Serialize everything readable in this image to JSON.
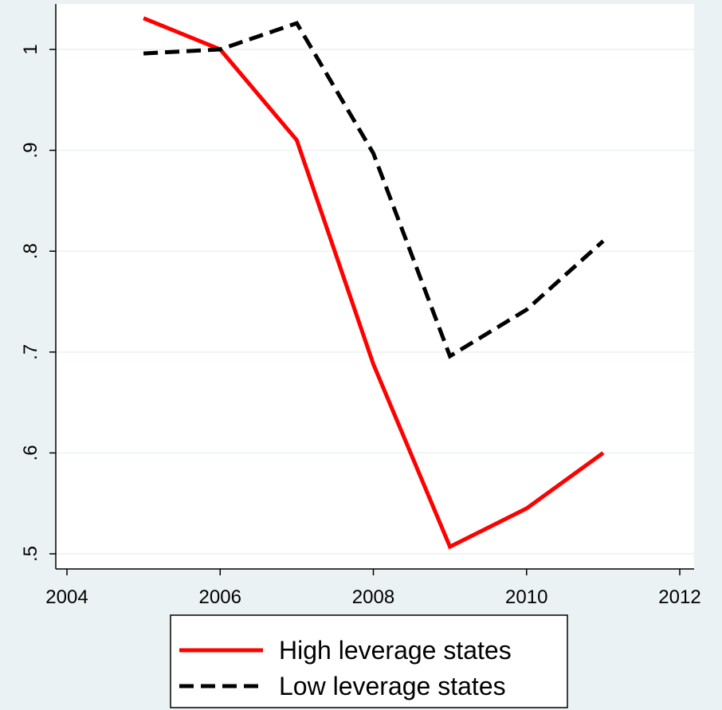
{
  "chart_data": {
    "type": "line",
    "title": "",
    "xlabel": "",
    "ylabel": "",
    "x": [
      2005,
      2006,
      2007,
      2008,
      2009,
      2010,
      2011
    ],
    "xlim": [
      2004,
      2012
    ],
    "ylim": [
      0.5,
      1.04
    ],
    "xticks": [
      {
        "value": 2004,
        "label": "2004"
      },
      {
        "value": 2006,
        "label": "2006"
      },
      {
        "value": 2008,
        "label": "2008"
      },
      {
        "value": 2010,
        "label": "2010"
      },
      {
        "value": 2012,
        "label": "2012"
      }
    ],
    "yticks": [
      {
        "value": 0.5,
        "label": ".5"
      },
      {
        "value": 0.6,
        "label": ".6"
      },
      {
        "value": 0.7,
        "label": ".7"
      },
      {
        "value": 0.8,
        "label": ".8"
      },
      {
        "value": 0.9,
        "label": ".9"
      },
      {
        "value": 1.0,
        "label": "1"
      }
    ],
    "grid": true,
    "legend_position": "bottom",
    "series": [
      {
        "name": "High leverage states",
        "color": "#ff0000",
        "style": "solid",
        "values": [
          1.031,
          1.0,
          0.91,
          0.688,
          0.507,
          0.545,
          0.6
        ]
      },
      {
        "name": "Low leverage states",
        "color": "#000000",
        "style": "dashed",
        "values": [
          0.996,
          1.0,
          1.026,
          0.897,
          0.696,
          0.742,
          0.81
        ]
      }
    ]
  }
}
